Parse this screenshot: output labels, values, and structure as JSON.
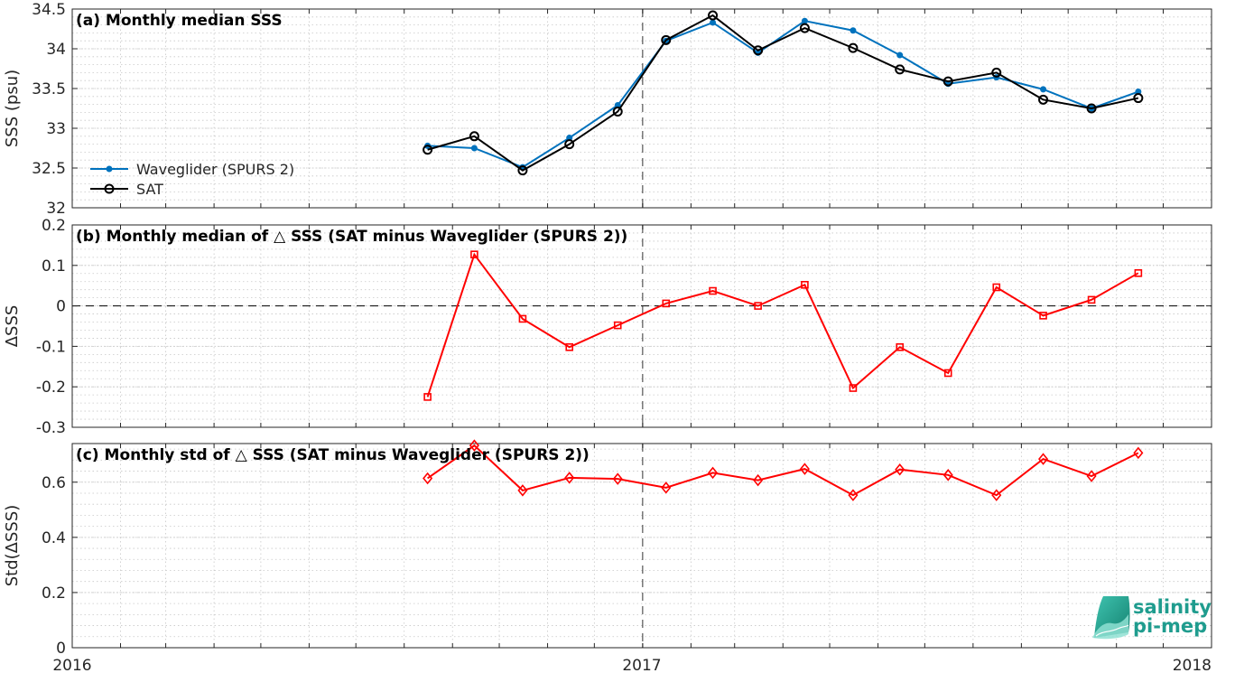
{
  "figure": {
    "x_tick_labels": [
      "2016",
      "2017",
      "2018"
    ],
    "logo": {
      "line1": "salinity",
      "line2": "pi-mep"
    }
  },
  "colors": {
    "waveglider": "#0072BD",
    "sat": "#000000",
    "delta": "#ff0000",
    "logo": "#1f9c8e"
  },
  "chart_data": [
    {
      "type": "line",
      "title": "(a) Monthly median SSS",
      "xlabel": "",
      "ylabel": "SSS (psu)",
      "xlim": [
        "2016-01-01",
        "2018-01-01"
      ],
      "ylim": [
        32,
        34.5
      ],
      "y_ticks": [
        "32",
        "32.5",
        "33",
        "33.5",
        "34",
        "34.5"
      ],
      "grid": true,
      "legend_position": "left",
      "x": [
        "2016-08-16",
        "2016-09-15",
        "2016-10-16",
        "2016-11-15",
        "2016-12-16",
        "2017-01-16",
        "2017-02-15",
        "2017-03-16",
        "2017-04-15",
        "2017-05-16",
        "2017-06-15",
        "2017-07-16",
        "2017-08-16",
        "2017-09-15",
        "2017-10-16",
        "2017-11-15"
      ],
      "series": [
        {
          "name": "Waveglider (SPURS 2)",
          "marker": "dot",
          "color": "#0072BD",
          "values": [
            32.78,
            32.75,
            32.51,
            32.88,
            33.29,
            34.1,
            34.33,
            33.95,
            34.35,
            34.23,
            33.92,
            33.56,
            33.64,
            33.49,
            33.25,
            33.46
          ]
        },
        {
          "name": "SAT",
          "marker": "circle",
          "color": "#000000",
          "values": [
            32.73,
            32.9,
            32.47,
            32.8,
            33.21,
            34.11,
            34.42,
            33.98,
            34.26,
            34.01,
            33.74,
            33.59,
            33.7,
            33.36,
            33.25,
            33.38
          ]
        }
      ]
    },
    {
      "type": "line",
      "title": "(b) Monthly median of △ SSS (SAT minus Waveglider (SPURS 2))",
      "xlabel": "",
      "ylabel": "ΔSSS",
      "xlim": [
        "2016-01-01",
        "2018-01-01"
      ],
      "ylim": [
        -0.3,
        0.2
      ],
      "y_ticks": [
        "-0.3",
        "-0.2",
        "-0.1",
        "0",
        "0.1",
        "0.2"
      ],
      "grid": true,
      "zero_line": true,
      "x": [
        "2016-08-16",
        "2016-09-15",
        "2016-10-16",
        "2016-11-15",
        "2016-12-16",
        "2017-01-16",
        "2017-02-15",
        "2017-03-16",
        "2017-04-15",
        "2017-05-16",
        "2017-06-15",
        "2017-07-16",
        "2017-08-16",
        "2017-09-15",
        "2017-10-16",
        "2017-11-15"
      ],
      "series": [
        {
          "marker": "square",
          "color": "#ff0000",
          "values": [
            -0.225,
            0.127,
            -0.032,
            -0.102,
            -0.048,
            0.006,
            0.037,
            0.0,
            0.052,
            -0.203,
            -0.102,
            -0.166,
            0.046,
            -0.024,
            0.015,
            0.081
          ]
        }
      ]
    },
    {
      "type": "line",
      "title": "(c) Monthly std of △ SSS (SAT minus Waveglider (SPURS 2))",
      "xlabel": "",
      "ylabel": "Std(ΔSSS)",
      "xlim": [
        "2016-01-01",
        "2018-01-01"
      ],
      "ylim": [
        0,
        0.74
      ],
      "y_ticks": [
        "0",
        "0.2",
        "0.4",
        "0.6"
      ],
      "grid": true,
      "x": [
        "2016-08-16",
        "2016-09-15",
        "2016-10-16",
        "2016-11-15",
        "2016-12-16",
        "2017-01-16",
        "2017-02-15",
        "2017-03-16",
        "2017-04-15",
        "2017-05-16",
        "2017-06-15",
        "2017-07-16",
        "2017-08-16",
        "2017-09-15",
        "2017-10-16",
        "2017-11-15"
      ],
      "series": [
        {
          "marker": "diamond",
          "color": "#ff0000",
          "values": [
            0.614,
            0.733,
            0.57,
            0.616,
            0.612,
            0.58,
            0.634,
            0.607,
            0.648,
            0.553,
            0.646,
            0.626,
            0.553,
            0.684,
            0.622,
            0.706
          ]
        }
      ]
    }
  ]
}
